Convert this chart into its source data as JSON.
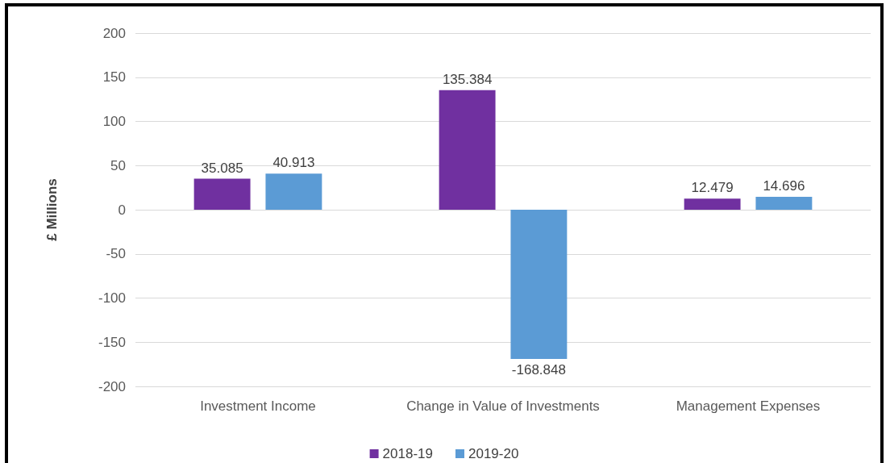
{
  "chart_data": {
    "type": "bar",
    "ylabel": "£ Millions",
    "categories": [
      "Investment Income",
      "Change in Value of Investments",
      "Management Expenses"
    ],
    "series": [
      {
        "name": "2018-19",
        "color": "#7030a0",
        "values": [
          35.085,
          135.384,
          12.479
        ]
      },
      {
        "name": "2019-20",
        "color": "#5b9bd5",
        "values": [
          40.913,
          -168.848,
          14.696
        ]
      }
    ],
    "ylim": [
      -200,
      200
    ],
    "yticks": [
      -200,
      -150,
      -100,
      -50,
      0,
      50,
      100,
      150,
      200
    ],
    "grid": "y",
    "legend": "bottom",
    "data_labels": true
  }
}
